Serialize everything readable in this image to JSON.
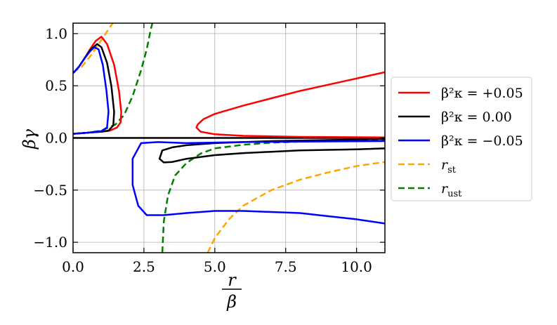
{
  "chart_data": {
    "type": "line",
    "xlim": [
      0.0,
      11.0
    ],
    "ylim": [
      -1.1,
      1.1
    ],
    "xticks": [
      "0.0",
      "2.5",
      "5.0",
      "7.5",
      "10.0"
    ],
    "xtick_values": [
      0.0,
      2.5,
      5.0,
      7.5,
      10.0
    ],
    "yticks": [
      "1.0",
      "0.5",
      "0.0",
      "−0.5",
      "−1.0"
    ],
    "ytick_values": [
      1.0,
      0.5,
      0.0,
      -0.5,
      -1.0
    ],
    "xlabel_num": "r",
    "xlabel_den": "β",
    "ylabel": "βγ",
    "grid": true,
    "legend_placement": "right, outside",
    "colors": {
      "red": "#ff0000",
      "black": "#000000",
      "blue": "#0000ff",
      "orange": "#ffa500",
      "green": "#008000"
    },
    "zero_line": {
      "color": "#000000",
      "y": 0.0
    },
    "series": [
      {
        "name": "β²κ = +0.05",
        "color": "#ff0000",
        "dash": false,
        "segments": [
          [
            [
              0.0,
              0.62
            ],
            [
              0.2,
              0.68
            ],
            [
              0.4,
              0.76
            ],
            [
              0.6,
              0.85
            ],
            [
              0.8,
              0.93
            ],
            [
              1.0,
              0.97
            ],
            [
              1.2,
              0.9
            ],
            [
              1.45,
              0.7
            ],
            [
              1.62,
              0.45
            ],
            [
              1.7,
              0.25
            ],
            [
              1.68,
              0.15
            ],
            [
              1.55,
              0.1
            ],
            [
              1.3,
              0.07
            ],
            [
              1.0,
              0.06
            ],
            [
              0.5,
              0.05
            ],
            [
              0.0,
              0.04
            ]
          ],
          [
            [
              11.0,
              0.63
            ],
            [
              10.0,
              0.57
            ],
            [
              9.0,
              0.51
            ],
            [
              8.0,
              0.45
            ],
            [
              7.0,
              0.38
            ],
            [
              6.0,
              0.31
            ],
            [
              5.0,
              0.23
            ],
            [
              4.6,
              0.18
            ],
            [
              4.4,
              0.13
            ],
            [
              4.35,
              0.1
            ],
            [
              4.5,
              0.06
            ],
            [
              5.0,
              0.035
            ],
            [
              6.0,
              0.02
            ],
            [
              8.0,
              0.01
            ],
            [
              11.0,
              0.005
            ]
          ]
        ]
      },
      {
        "name": "β²κ = 0.00",
        "color": "#000000",
        "dash": false,
        "segments": [
          [
            [
              0.0,
              0.62
            ],
            [
              0.2,
              0.68
            ],
            [
              0.4,
              0.76
            ],
            [
              0.6,
              0.84
            ],
            [
              0.85,
              0.9
            ],
            [
              1.0,
              0.87
            ],
            [
              1.2,
              0.72
            ],
            [
              1.35,
              0.5
            ],
            [
              1.45,
              0.25
            ],
            [
              1.42,
              0.12
            ],
            [
              1.25,
              0.07
            ],
            [
              1.0,
              0.06
            ],
            [
              0.5,
              0.05
            ],
            [
              0.0,
              0.04
            ]
          ],
          [
            [
              11.0,
              -0.1
            ],
            [
              10.0,
              -0.11
            ],
            [
              8.0,
              -0.12
            ],
            [
              6.0,
              -0.145
            ],
            [
              5.0,
              -0.165
            ],
            [
              4.0,
              -0.2
            ],
            [
              3.5,
              -0.23
            ],
            [
              3.2,
              -0.235
            ],
            [
              3.05,
              -0.2
            ],
            [
              3.15,
              -0.12
            ],
            [
              3.5,
              -0.09
            ],
            [
              4.0,
              -0.07
            ],
            [
              5.0,
              -0.05
            ],
            [
              7.0,
              -0.03
            ],
            [
              11.0,
              -0.01
            ]
          ]
        ]
      },
      {
        "name": "β²κ = −0.05",
        "color": "#0000ff",
        "dash": false,
        "segments": [
          [
            [
              0.0,
              0.62
            ],
            [
              0.2,
              0.68
            ],
            [
              0.4,
              0.76
            ],
            [
              0.6,
              0.83
            ],
            [
              0.75,
              0.87
            ],
            [
              0.9,
              0.85
            ],
            [
              1.05,
              0.7
            ],
            [
              1.18,
              0.45
            ],
            [
              1.25,
              0.25
            ],
            [
              1.2,
              0.1
            ],
            [
              1.0,
              0.065
            ],
            [
              0.5,
              0.05
            ],
            [
              0.0,
              0.04
            ]
          ],
          [
            [
              11.0,
              -0.03
            ],
            [
              8.0,
              -0.035
            ],
            [
              6.0,
              -0.04
            ],
            [
              4.0,
              -0.05
            ],
            [
              3.0,
              -0.04
            ],
            [
              2.4,
              -0.05
            ],
            [
              2.1,
              -0.2
            ],
            [
              2.1,
              -0.45
            ],
            [
              2.3,
              -0.65
            ],
            [
              2.6,
              -0.74
            ],
            [
              3.2,
              -0.74
            ],
            [
              4.0,
              -0.72
            ],
            [
              5.0,
              -0.7
            ],
            [
              6.0,
              -0.7
            ],
            [
              7.0,
              -0.71
            ],
            [
              8.0,
              -0.72
            ],
            [
              9.0,
              -0.75
            ],
            [
              10.0,
              -0.78
            ],
            [
              11.0,
              -0.82
            ]
          ]
        ]
      },
      {
        "name": "r_st",
        "label_main": "r",
        "label_sub": "st",
        "color": "#ffa500",
        "dash": true,
        "segments": [
          [
            [
              0.0,
              0.63
            ],
            [
              0.3,
              0.68
            ],
            [
              0.6,
              0.78
            ],
            [
              0.9,
              0.9
            ],
            [
              1.2,
              1.02
            ],
            [
              1.4,
              1.1
            ]
          ],
          [
            [
              4.75,
              -1.1
            ],
            [
              5.0,
              -0.96
            ],
            [
              5.5,
              -0.78
            ],
            [
              6.0,
              -0.65
            ],
            [
              7.0,
              -0.5
            ],
            [
              8.0,
              -0.4
            ],
            [
              9.0,
              -0.33
            ],
            [
              10.0,
              -0.27
            ],
            [
              11.0,
              -0.23
            ]
          ]
        ]
      },
      {
        "name": "r_ust",
        "label_main": "r",
        "label_sub": "ust",
        "color": "#008000",
        "dash": true,
        "segments": [
          [
            [
              0.0,
              0.04
            ],
            [
              0.5,
              0.05
            ],
            [
              1.0,
              0.07
            ],
            [
              1.5,
              0.13
            ],
            [
              1.8,
              0.22
            ],
            [
              2.1,
              0.4
            ],
            [
              2.4,
              0.65
            ],
            [
              2.6,
              0.85
            ],
            [
              2.75,
              1.05
            ],
            [
              2.8,
              1.1
            ]
          ],
          [
            [
              3.15,
              -1.1
            ],
            [
              3.2,
              -0.8
            ],
            [
              3.35,
              -0.55
            ],
            [
              3.6,
              -0.36
            ],
            [
              4.0,
              -0.24
            ],
            [
              4.5,
              -0.15
            ],
            [
              5.0,
              -0.1
            ],
            [
              6.0,
              -0.065
            ],
            [
              7.0,
              -0.045
            ],
            [
              8.0,
              -0.035
            ],
            [
              9.0,
              -0.03
            ],
            [
              10.0,
              -0.025
            ],
            [
              11.0,
              -0.02
            ]
          ]
        ]
      }
    ]
  }
}
